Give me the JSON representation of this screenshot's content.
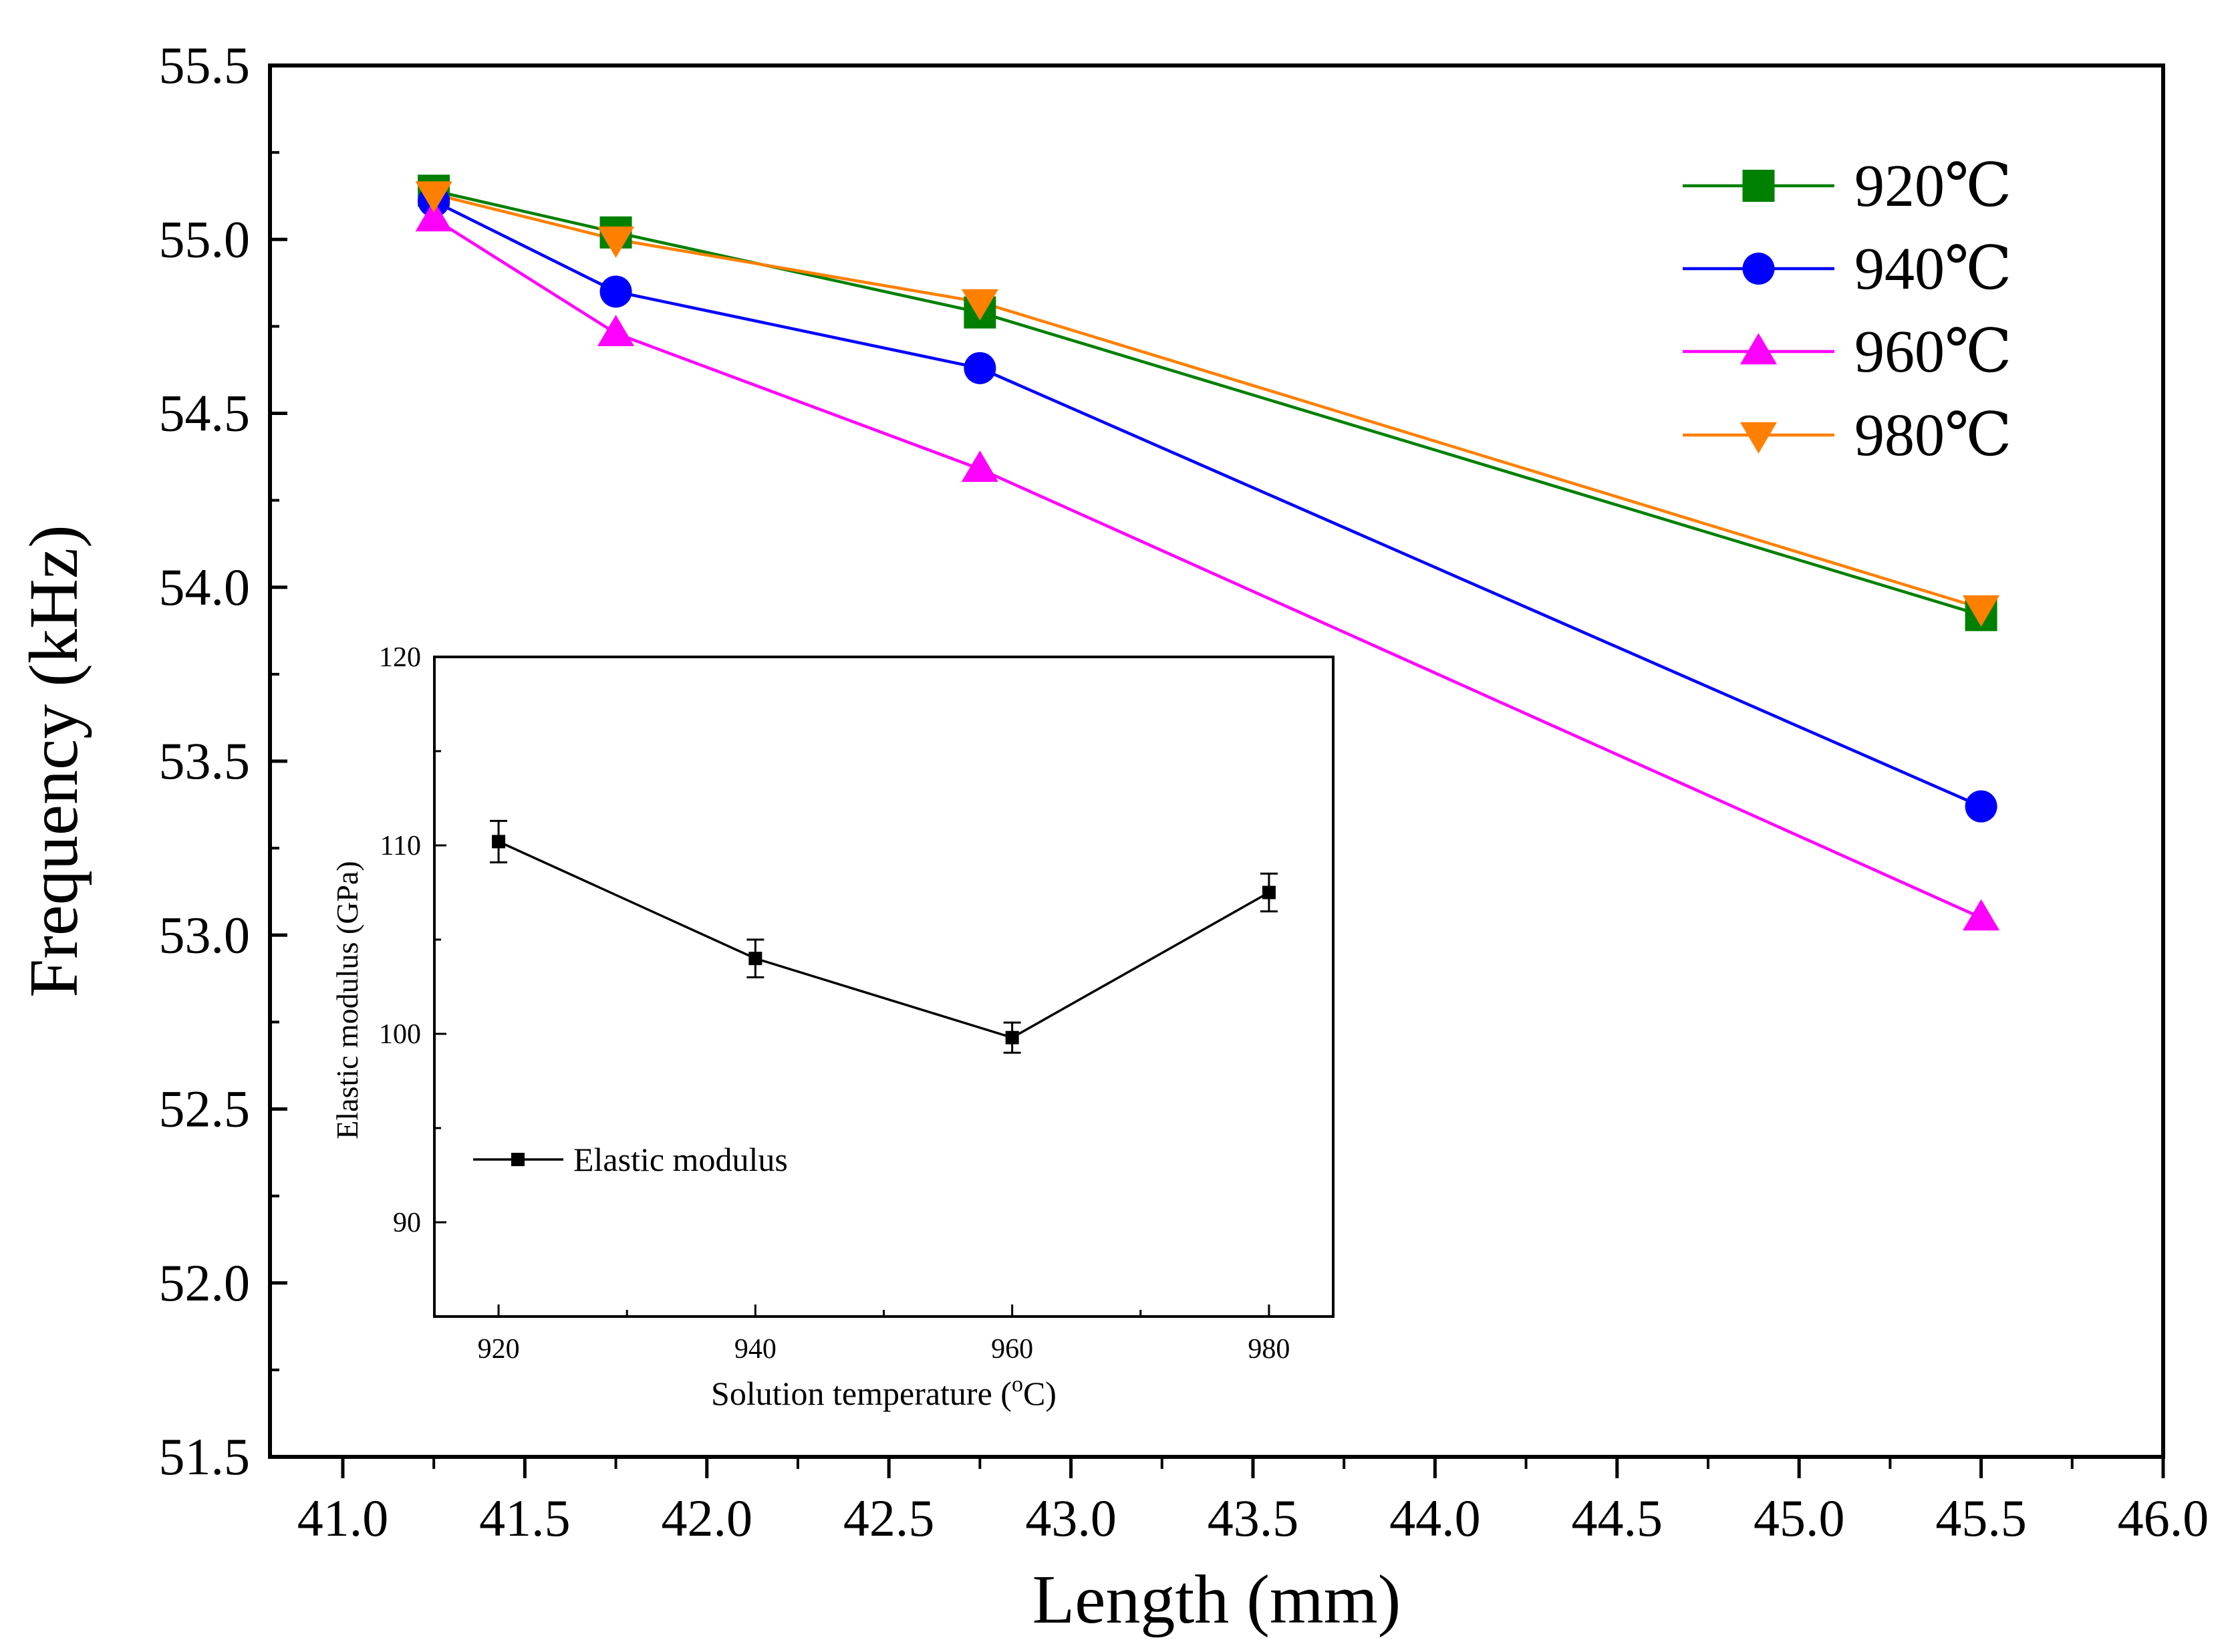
{
  "chart_data": [
    {
      "type": "line",
      "xlabel": "Length (mm)",
      "ylabel": "Frequency (kHz)",
      "xlim": [
        40.8,
        46.0
      ],
      "ylim": [
        51.5,
        55.5
      ],
      "x_ticks": [
        "41.0",
        "41.5",
        "42.0",
        "42.5",
        "43.0",
        "43.5",
        "44.0",
        "44.5",
        "45.0",
        "45.5",
        "46.0"
      ],
      "y_ticks": [
        "51.5",
        "52.0",
        "52.5",
        "53.0",
        "53.5",
        "54.0",
        "54.5",
        "55.0",
        "55.5"
      ],
      "legend_position": "top-right",
      "series": [
        {
          "name": "920℃",
          "color": "#008000",
          "marker": "square",
          "x": [
            41.25,
            41.75,
            42.75,
            45.5
          ],
          "y": [
            55.14,
            55.02,
            54.79,
            53.92
          ]
        },
        {
          "name": "940℃",
          "color": "#0000ff",
          "marker": "circle",
          "x": [
            41.25,
            41.75,
            42.75,
            45.5
          ],
          "y": [
            55.11,
            54.85,
            54.63,
            53.37
          ]
        },
        {
          "name": "960℃",
          "color": "#ff00ff",
          "marker": "triangle-up",
          "x": [
            41.25,
            41.75,
            42.75,
            45.5
          ],
          "y": [
            55.06,
            54.73,
            54.34,
            53.05
          ]
        },
        {
          "name": "980℃",
          "color": "#ff8000",
          "marker": "triangle-down",
          "x": [
            41.25,
            41.75,
            42.75,
            45.5
          ],
          "y": [
            55.13,
            55.0,
            54.82,
            53.94
          ]
        }
      ]
    },
    {
      "type": "line",
      "inset": true,
      "xlabel": "Solution temperature (",
      "xlabel_sup": "o",
      "xlabel_end": "C)",
      "ylabel": "Elastic modulus (GPa)",
      "xlim": [
        915,
        985
      ],
      "ylim": [
        85,
        120
      ],
      "x_ticks": [
        "920",
        "940",
        "960",
        "980"
      ],
      "y_ticks": [
        "90",
        "100",
        "110",
        "120"
      ],
      "legend_position": "bottom-left",
      "series": [
        {
          "name": "Elastic modulus",
          "color": "#000000",
          "marker": "square",
          "x": [
            920,
            940,
            960,
            980
          ],
          "y": [
            110.2,
            104.0,
            99.8,
            107.5
          ],
          "error": [
            1.1,
            1.0,
            0.8,
            1.0
          ]
        }
      ]
    }
  ]
}
